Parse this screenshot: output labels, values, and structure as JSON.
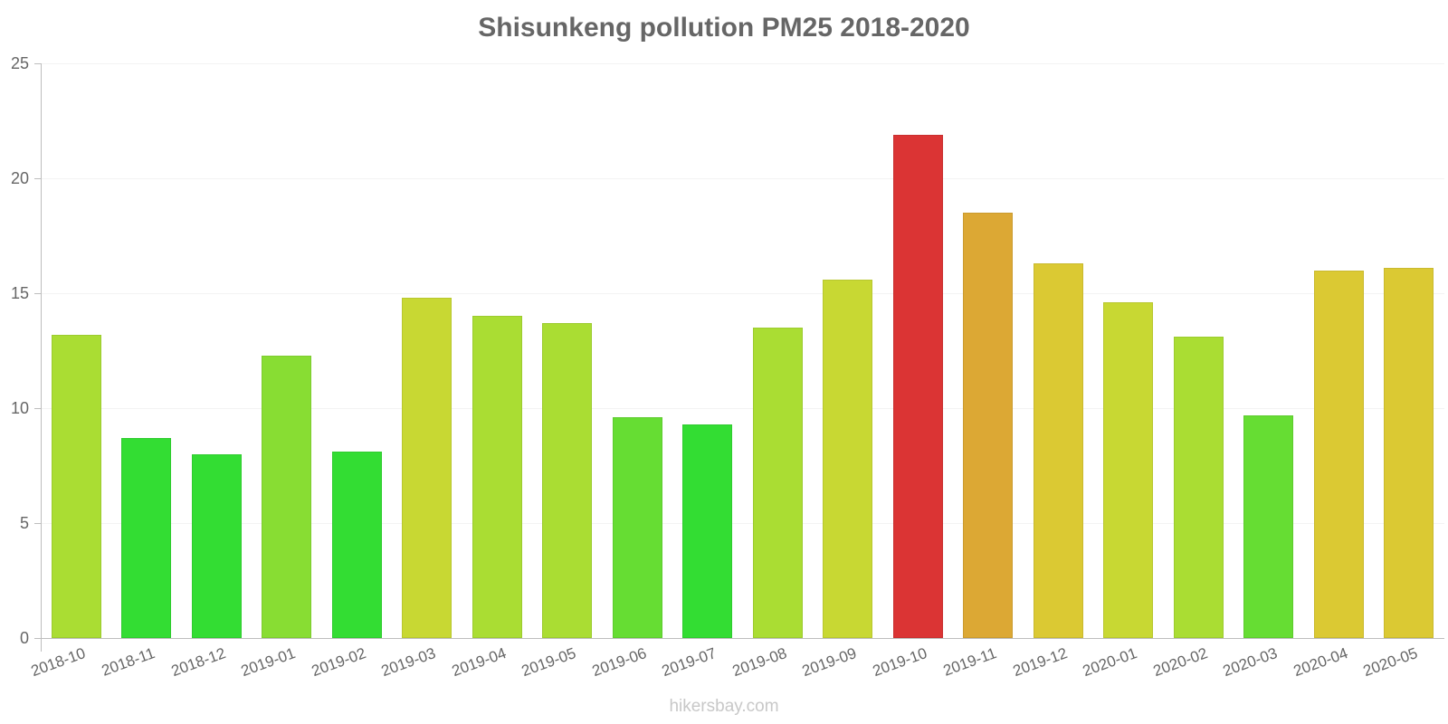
{
  "chart_data": {
    "type": "bar",
    "title": "Shisunkeng pollution PM25 2018-2020",
    "xlabel": "",
    "ylabel": "",
    "ylim": [
      0,
      25
    ],
    "yticks": [
      0,
      5,
      10,
      15,
      20,
      25
    ],
    "grid": true,
    "legend": "none",
    "categories": [
      "2018-10",
      "2018-11",
      "2018-12",
      "2019-01",
      "2019-02",
      "2019-03",
      "2019-04",
      "2019-05",
      "2019-06",
      "2019-07",
      "2019-08",
      "2019-09",
      "2019-10",
      "2019-11",
      "2019-12",
      "2020-01",
      "2020-02",
      "2020-03",
      "2020-04",
      "2020-05"
    ],
    "values": [
      13.2,
      8.7,
      8.0,
      12.3,
      8.1,
      14.8,
      14.0,
      13.7,
      9.6,
      9.3,
      13.5,
      15.6,
      21.9,
      18.5,
      16.3,
      14.6,
      13.1,
      9.7,
      16.0,
      16.1
    ],
    "colors": [
      "#aadd33",
      "#33dd33",
      "#33dd33",
      "#88dd33",
      "#33dd33",
      "#c8d833",
      "#aadd33",
      "#aadd33",
      "#66dd33",
      "#33dd33",
      "#aadd33",
      "#c8d833",
      "#db3434",
      "#dca834",
      "#dbc933",
      "#c8d833",
      "#aadd33",
      "#66dd33",
      "#dbc933",
      "#dbc933"
    ]
  },
  "footer": {
    "source": "hikersbay.com"
  }
}
